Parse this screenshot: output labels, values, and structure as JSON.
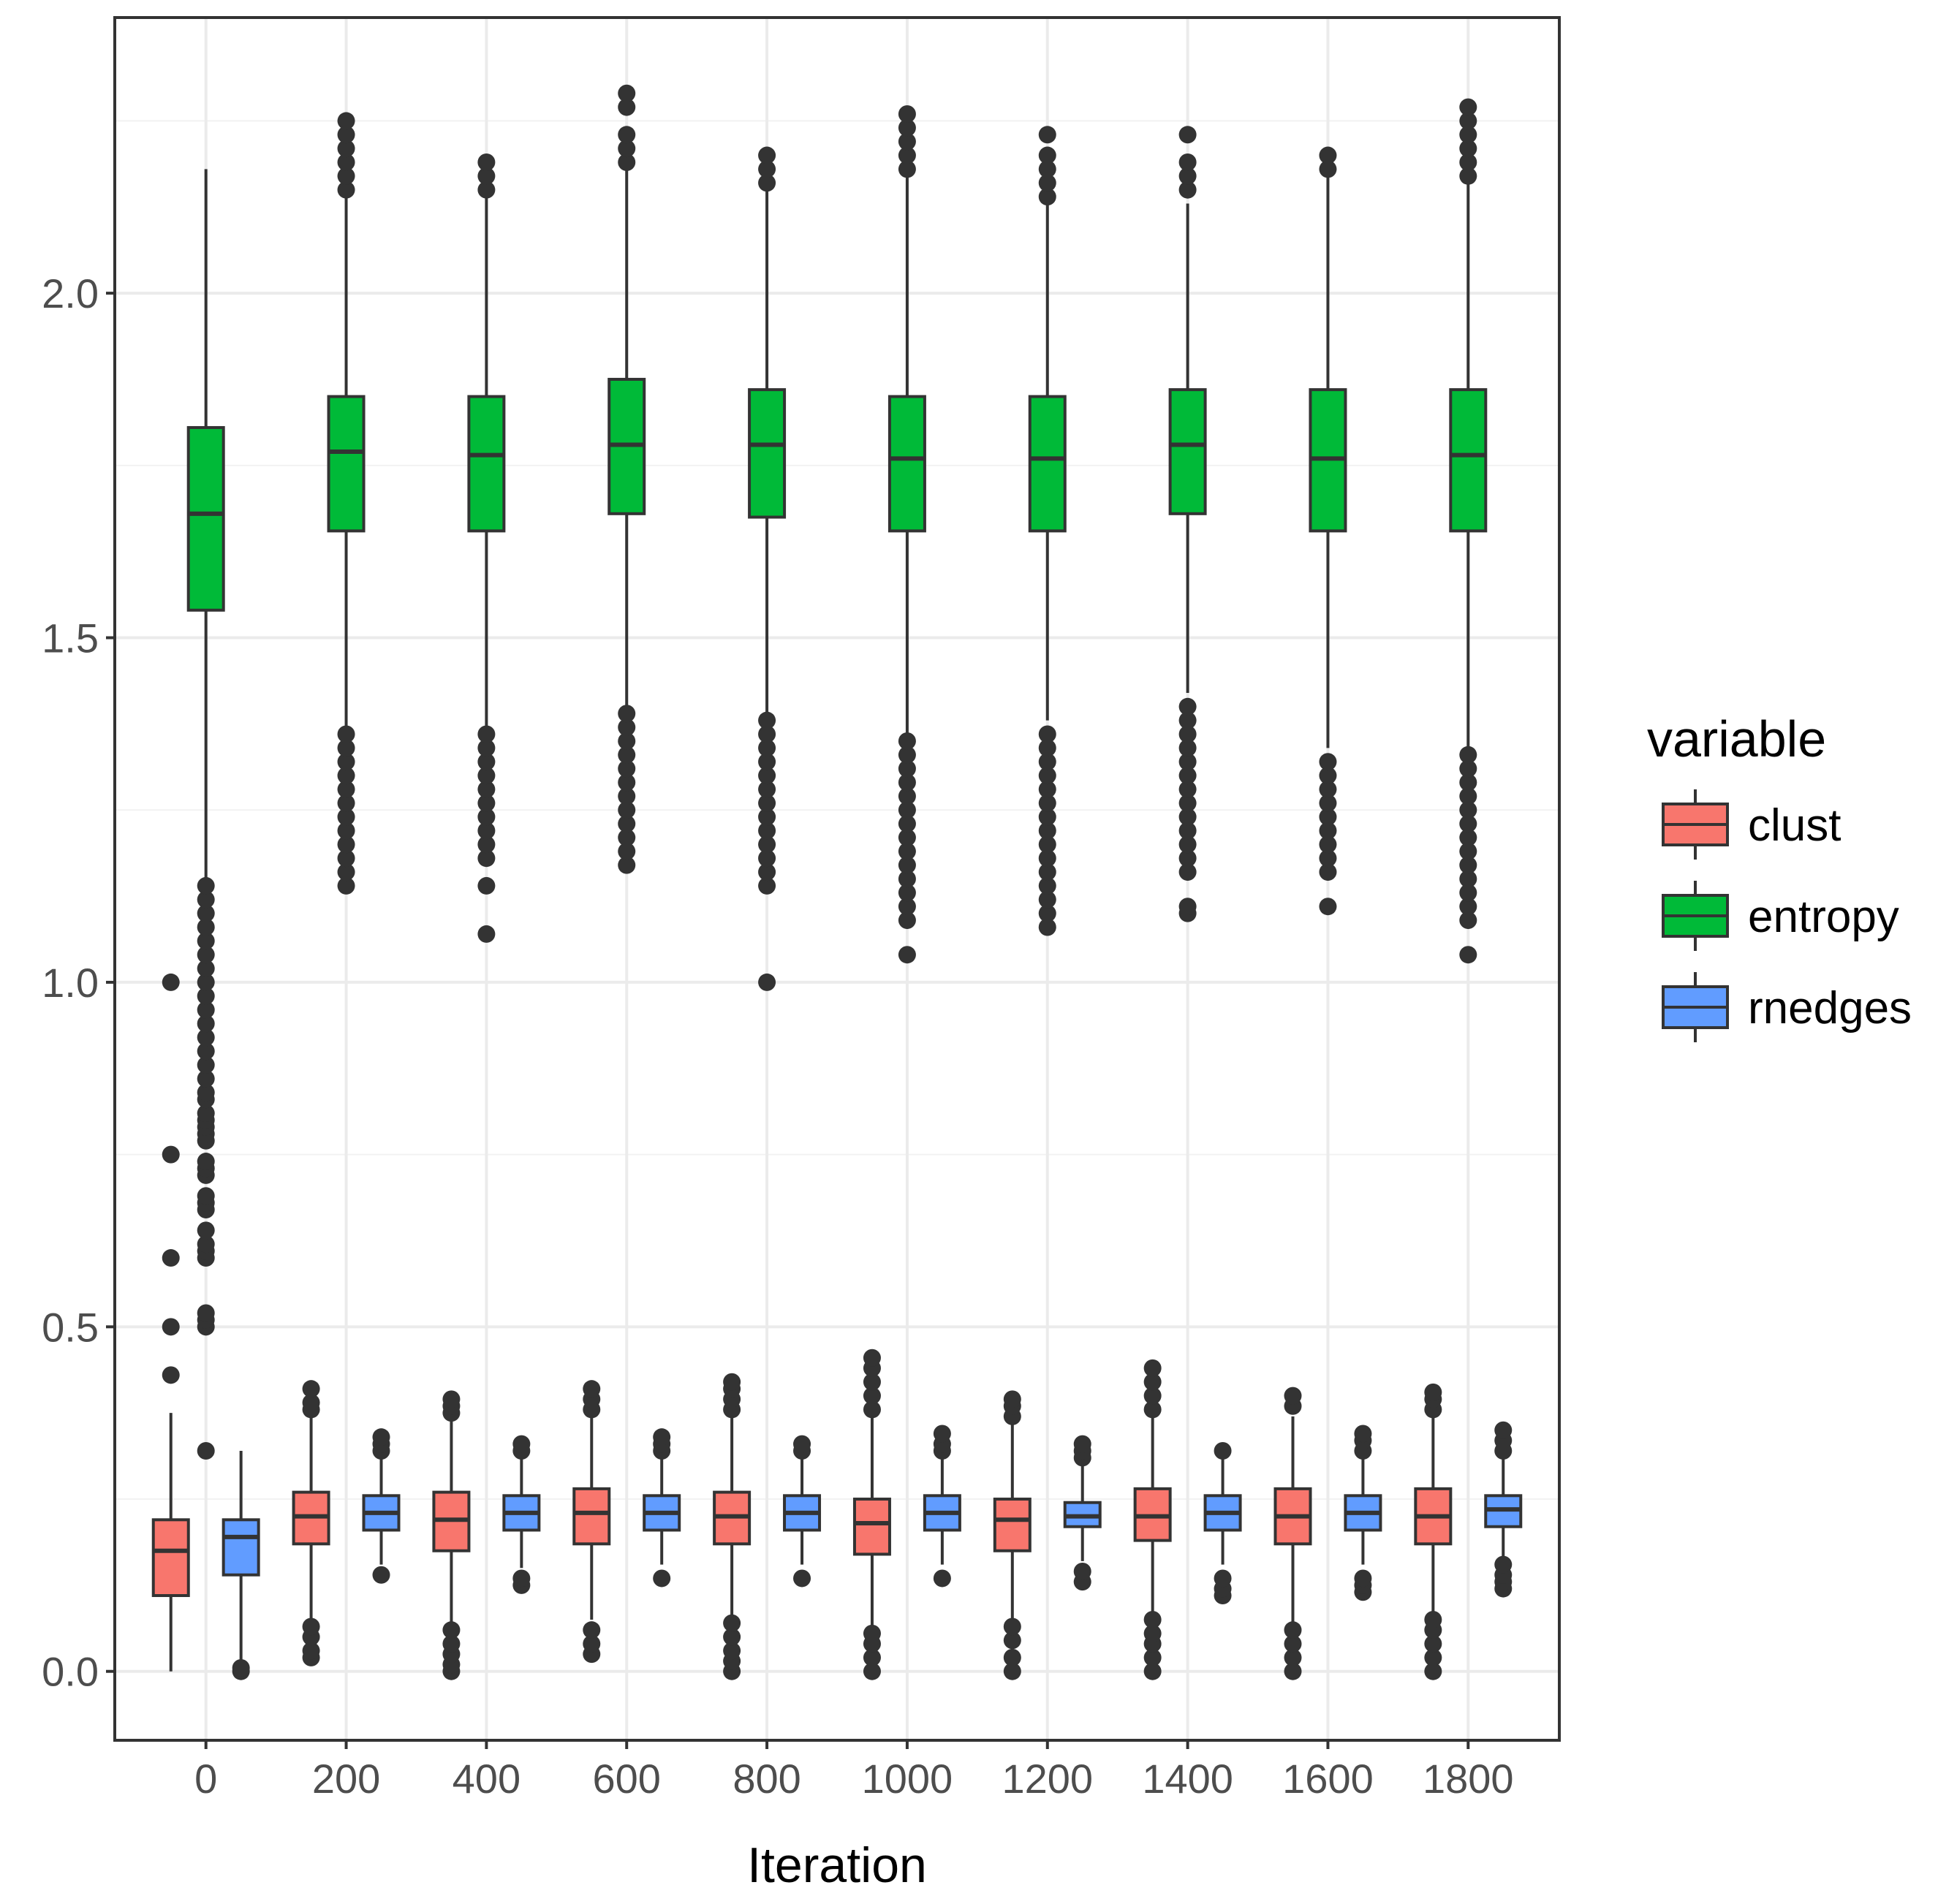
{
  "chart_data": {
    "type": "boxplot",
    "title": "",
    "xlabel": "Iteration",
    "ylabel": "",
    "ylim": [
      -0.1,
      2.4
    ],
    "yticks": [
      0.0,
      0.5,
      1.0,
      1.5,
      2.0
    ],
    "ytick_labels": [
      "0.0",
      "0.5",
      "1.0",
      "1.5",
      "2.0"
    ],
    "xlim": [
      -130,
      1930
    ],
    "categories": [
      0,
      200,
      400,
      600,
      800,
      1000,
      1200,
      1400,
      1600,
      1800
    ],
    "category_labels": [
      "0",
      "200",
      "400",
      "600",
      "800",
      "1000",
      "1200",
      "1400",
      "1600",
      "1800"
    ],
    "legend": {
      "title": "variable",
      "position": "right",
      "entries": [
        {
          "key": "clust",
          "label": "clust",
          "color": "#F8766D"
        },
        {
          "key": "entropy",
          "label": "entropy",
          "color": "#00BA38"
        },
        {
          "key": "rnedges",
          "label": "rnedges",
          "color": "#619CFF"
        }
      ]
    },
    "series": [
      {
        "name": "clust",
        "color": "#F8766D",
        "offset": -50,
        "boxes": [
          {
            "x": 0,
            "q1": 0.11,
            "median": 0.175,
            "q3": 0.22,
            "whisker_low": 0.0,
            "whisker_high": 0.375,
            "outliers": [
              0.43,
              0.5,
              0.6,
              0.75,
              1.0
            ]
          },
          {
            "x": 200,
            "q1": 0.185,
            "median": 0.225,
            "q3": 0.26,
            "whisker_low": 0.075,
            "whisker_high": 0.37,
            "outliers": [
              0.02,
              0.03,
              0.05,
              0.065,
              0.38,
              0.39,
              0.41
            ]
          },
          {
            "x": 400,
            "q1": 0.175,
            "median": 0.22,
            "q3": 0.26,
            "whisker_low": 0.07,
            "whisker_high": 0.37,
            "outliers": [
              0.0,
              0.01,
              0.025,
              0.04,
              0.06,
              0.375,
              0.385,
              0.395
            ]
          },
          {
            "x": 600,
            "q1": 0.185,
            "median": 0.23,
            "q3": 0.265,
            "whisker_low": 0.075,
            "whisker_high": 0.37,
            "outliers": [
              0.025,
              0.04,
              0.06,
              0.38,
              0.395,
              0.41
            ]
          },
          {
            "x": 800,
            "q1": 0.185,
            "median": 0.225,
            "q3": 0.26,
            "whisker_low": 0.075,
            "whisker_high": 0.37,
            "outliers": [
              0.0,
              0.015,
              0.03,
              0.05,
              0.07,
              0.38,
              0.395,
              0.41,
              0.42
            ]
          },
          {
            "x": 1000,
            "q1": 0.17,
            "median": 0.215,
            "q3": 0.25,
            "whisker_low": 0.06,
            "whisker_high": 0.37,
            "outliers": [
              0.0,
              0.02,
              0.04,
              0.055,
              0.38,
              0.4,
              0.42,
              0.44,
              0.455
            ]
          },
          {
            "x": 1200,
            "q1": 0.175,
            "median": 0.22,
            "q3": 0.25,
            "whisker_low": 0.07,
            "whisker_high": 0.36,
            "outliers": [
              0.0,
              0.02,
              0.045,
              0.065,
              0.37,
              0.385,
              0.395
            ]
          },
          {
            "x": 1400,
            "q1": 0.19,
            "median": 0.225,
            "q3": 0.265,
            "whisker_low": 0.08,
            "whisker_high": 0.37,
            "outliers": [
              0.0,
              0.02,
              0.04,
              0.055,
              0.075,
              0.38,
              0.4,
              0.42,
              0.44
            ]
          },
          {
            "x": 1600,
            "q1": 0.185,
            "median": 0.225,
            "q3": 0.265,
            "whisker_low": 0.07,
            "whisker_high": 0.37,
            "outliers": [
              0.0,
              0.02,
              0.04,
              0.06,
              0.385,
              0.4
            ]
          },
          {
            "x": 1800,
            "q1": 0.185,
            "median": 0.225,
            "q3": 0.265,
            "whisker_low": 0.08,
            "whisker_high": 0.37,
            "outliers": [
              0.0,
              0.02,
              0.04,
              0.06,
              0.075,
              0.38,
              0.395,
              0.405
            ]
          }
        ]
      },
      {
        "name": "entropy",
        "color": "#00BA38",
        "offset": 0,
        "boxes": [
          {
            "x": 0,
            "q1": 1.54,
            "median": 1.68,
            "q3": 1.805,
            "whisker_low": 1.15,
            "whisker_high": 2.18,
            "outliers": [
              0.32,
              0.5,
              0.51,
              0.52,
              0.6,
              0.61,
              0.62,
              0.64,
              0.67,
              0.68,
              0.69,
              0.72,
              0.73,
              0.74,
              0.77,
              0.78,
              0.79,
              0.8,
              0.81,
              0.83,
              0.84,
              0.86,
              0.88,
              0.9,
              0.92,
              0.94,
              0.96,
              0.98,
              1.0,
              1.02,
              1.04,
              1.06,
              1.08,
              1.1,
              1.12,
              1.14
            ]
          },
          {
            "x": 200,
            "q1": 1.655,
            "median": 1.77,
            "q3": 1.85,
            "whisker_low": 1.37,
            "whisker_high": 2.14,
            "outliers": [
              1.14,
              1.16,
              1.18,
              1.2,
              1.22,
              1.24,
              1.26,
              1.28,
              1.3,
              1.32,
              1.34,
              1.36,
              2.15,
              2.17,
              2.19,
              2.21,
              2.23,
              2.25
            ]
          },
          {
            "x": 400,
            "q1": 1.655,
            "median": 1.765,
            "q3": 1.85,
            "whisker_low": 1.37,
            "whisker_high": 2.14,
            "outliers": [
              1.07,
              1.14,
              1.18,
              1.2,
              1.22,
              1.24,
              1.26,
              1.28,
              1.3,
              1.32,
              1.34,
              1.36,
              2.15,
              2.17,
              2.19
            ]
          },
          {
            "x": 600,
            "q1": 1.68,
            "median": 1.78,
            "q3": 1.875,
            "whisker_low": 1.4,
            "whisker_high": 2.18,
            "outliers": [
              1.17,
              1.19,
              1.21,
              1.23,
              1.25,
              1.27,
              1.29,
              1.31,
              1.33,
              1.35,
              1.37,
              1.39,
              2.19,
              2.21,
              2.23,
              2.27,
              2.29
            ]
          },
          {
            "x": 800,
            "q1": 1.675,
            "median": 1.78,
            "q3": 1.86,
            "whisker_low": 1.39,
            "whisker_high": 2.15,
            "outliers": [
              1.0,
              1.14,
              1.16,
              1.18,
              1.2,
              1.22,
              1.24,
              1.26,
              1.28,
              1.3,
              1.32,
              1.34,
              1.36,
              1.38,
              2.16,
              2.18,
              2.2
            ]
          },
          {
            "x": 1000,
            "q1": 1.655,
            "median": 1.76,
            "q3": 1.85,
            "whisker_low": 1.36,
            "whisker_high": 2.17,
            "outliers": [
              1.04,
              1.09,
              1.11,
              1.13,
              1.15,
              1.17,
              1.19,
              1.21,
              1.23,
              1.25,
              1.27,
              1.29,
              1.31,
              1.33,
              1.35,
              2.18,
              2.2,
              2.22,
              2.24,
              2.26
            ]
          },
          {
            "x": 1200,
            "q1": 1.655,
            "median": 1.76,
            "q3": 1.85,
            "whisker_low": 1.38,
            "whisker_high": 2.13,
            "outliers": [
              1.08,
              1.1,
              1.12,
              1.14,
              1.16,
              1.18,
              1.2,
              1.22,
              1.24,
              1.26,
              1.28,
              1.3,
              1.32,
              1.34,
              1.36,
              2.14,
              2.16,
              2.18,
              2.2,
              2.23
            ]
          },
          {
            "x": 1400,
            "q1": 1.68,
            "median": 1.78,
            "q3": 1.86,
            "whisker_low": 1.42,
            "whisker_high": 2.13,
            "outliers": [
              1.1,
              1.11,
              1.16,
              1.18,
              1.2,
              1.22,
              1.24,
              1.26,
              1.28,
              1.3,
              1.32,
              1.34,
              1.36,
              1.38,
              1.4,
              2.15,
              2.17,
              2.19,
              2.23
            ]
          },
          {
            "x": 1600,
            "q1": 1.655,
            "median": 1.76,
            "q3": 1.86,
            "whisker_low": 1.34,
            "whisker_high": 2.17,
            "outliers": [
              1.11,
              1.16,
              1.18,
              1.2,
              1.22,
              1.24,
              1.26,
              1.28,
              1.3,
              1.32,
              2.18,
              2.2
            ]
          },
          {
            "x": 1800,
            "q1": 1.655,
            "median": 1.765,
            "q3": 1.86,
            "whisker_low": 1.34,
            "whisker_high": 2.16,
            "outliers": [
              1.04,
              1.09,
              1.11,
              1.13,
              1.15,
              1.17,
              1.19,
              1.21,
              1.23,
              1.25,
              1.27,
              1.29,
              1.31,
              1.33,
              2.17,
              2.19,
              2.21,
              2.23,
              2.25,
              2.27
            ]
          }
        ]
      },
      {
        "name": "rnedges",
        "color": "#619CFF",
        "offset": 50,
        "boxes": [
          {
            "x": 0,
            "q1": 0.14,
            "median": 0.195,
            "q3": 0.22,
            "whisker_low": 0.01,
            "whisker_high": 0.32,
            "outliers": [
              0.0,
              0.005
            ]
          },
          {
            "x": 200,
            "q1": 0.205,
            "median": 0.23,
            "q3": 0.255,
            "whisker_low": 0.155,
            "whisker_high": 0.31,
            "outliers": [
              0.14,
              0.32,
              0.33,
              0.34
            ]
          },
          {
            "x": 400,
            "q1": 0.205,
            "median": 0.23,
            "q3": 0.255,
            "whisker_low": 0.15,
            "whisker_high": 0.31,
            "outliers": [
              0.125,
              0.135,
              0.32,
              0.33
            ]
          },
          {
            "x": 600,
            "q1": 0.205,
            "median": 0.23,
            "q3": 0.255,
            "whisker_low": 0.155,
            "whisker_high": 0.31,
            "outliers": [
              0.135,
              0.32,
              0.33,
              0.34
            ]
          },
          {
            "x": 800,
            "q1": 0.205,
            "median": 0.23,
            "q3": 0.255,
            "whisker_low": 0.155,
            "whisker_high": 0.31,
            "outliers": [
              0.135,
              0.32,
              0.33
            ]
          },
          {
            "x": 1000,
            "q1": 0.205,
            "median": 0.23,
            "q3": 0.255,
            "whisker_low": 0.155,
            "whisker_high": 0.31,
            "outliers": [
              0.135,
              0.32,
              0.33,
              0.345
            ]
          },
          {
            "x": 1200,
            "q1": 0.21,
            "median": 0.225,
            "q3": 0.245,
            "whisker_low": 0.16,
            "whisker_high": 0.3,
            "outliers": [
              0.13,
              0.145,
              0.31,
              0.32,
              0.33
            ]
          },
          {
            "x": 1400,
            "q1": 0.205,
            "median": 0.23,
            "q3": 0.255,
            "whisker_low": 0.155,
            "whisker_high": 0.31,
            "outliers": [
              0.11,
              0.12,
              0.135,
              0.32
            ]
          },
          {
            "x": 1600,
            "q1": 0.205,
            "median": 0.23,
            "q3": 0.255,
            "whisker_low": 0.155,
            "whisker_high": 0.31,
            "outliers": [
              0.115,
              0.125,
              0.135,
              0.32,
              0.335,
              0.345
            ]
          },
          {
            "x": 1800,
            "q1": 0.21,
            "median": 0.235,
            "q3": 0.255,
            "whisker_low": 0.16,
            "whisker_high": 0.31,
            "outliers": [
              0.12,
              0.13,
              0.14,
              0.155,
              0.32,
              0.335,
              0.35
            ]
          }
        ]
      }
    ]
  }
}
